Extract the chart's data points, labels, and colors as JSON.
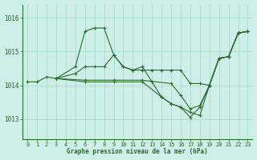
{
  "title": "Graphe pression niveau de la mer (hPa)",
  "bg_color": "#ceeee8",
  "grid_color": "#aaddcc",
  "line_color": "#2d6a2d",
  "xlim": [
    -0.5,
    23.5
  ],
  "ylim": [
    1012.4,
    1016.4
  ],
  "yticks": [
    1013,
    1014,
    1015,
    1016
  ],
  "xticks": [
    0,
    1,
    2,
    3,
    4,
    5,
    6,
    7,
    8,
    9,
    10,
    11,
    12,
    13,
    14,
    15,
    16,
    17,
    18,
    19,
    20,
    21,
    22,
    23
  ],
  "lines": [
    {
      "x": [
        0,
        1,
        2,
        3,
        5,
        6,
        7,
        8,
        9,
        10,
        11,
        12,
        13,
        14,
        15,
        16,
        17,
        18,
        19,
        20,
        21,
        22,
        23
      ],
      "y": [
        1014.1,
        1014.1,
        1014.25,
        1014.2,
        1014.55,
        1015.6,
        1015.7,
        1015.7,
        1014.9,
        1014.55,
        1014.45,
        1014.55,
        1014.1,
        1013.65,
        1013.45,
        1013.35,
        1013.2,
        1013.1,
        1014.0,
        1014.8,
        1014.85,
        1015.55,
        1015.6
      ]
    },
    {
      "x": [
        3,
        5,
        6,
        7,
        8,
        9,
        10,
        11,
        12,
        13,
        14,
        15,
        16,
        17,
        18,
        19,
        20,
        21,
        22,
        23
      ],
      "y": [
        1014.2,
        1014.35,
        1014.55,
        1014.55,
        1014.55,
        1014.9,
        1014.55,
        1014.45,
        1014.45,
        1014.45,
        1014.45,
        1014.45,
        1014.45,
        1014.05,
        1014.05,
        1014.0,
        1014.8,
        1014.85,
        1015.55,
        1015.6
      ]
    },
    {
      "x": [
        3,
        6,
        9,
        12,
        15,
        16,
        17,
        18,
        19,
        20,
        21,
        22,
        23
      ],
      "y": [
        1014.2,
        1014.15,
        1014.15,
        1014.15,
        1014.05,
        1013.7,
        1013.3,
        1013.4,
        1014.0,
        1014.8,
        1014.85,
        1015.55,
        1015.6
      ]
    },
    {
      "x": [
        3,
        6,
        9,
        12,
        14,
        15,
        16,
        17,
        18,
        19,
        20,
        21,
        22,
        23
      ],
      "y": [
        1014.2,
        1014.1,
        1014.1,
        1014.1,
        1013.65,
        1013.45,
        1013.35,
        1013.05,
        1013.35,
        1014.0,
        1014.8,
        1014.85,
        1015.55,
        1015.6
      ]
    }
  ]
}
